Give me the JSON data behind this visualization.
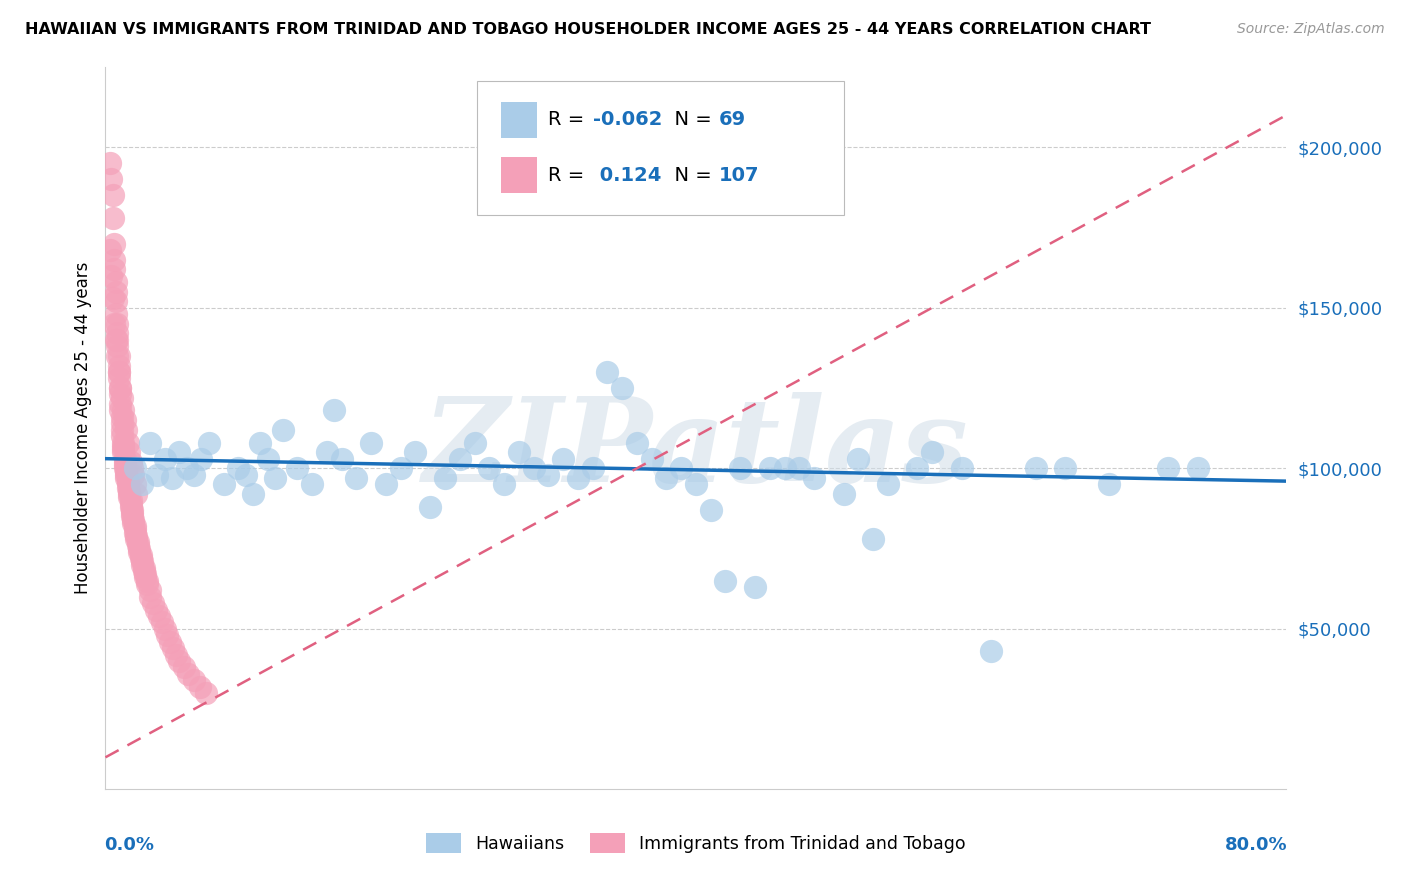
{
  "title": "HAWAIIAN VS IMMIGRANTS FROM TRINIDAD AND TOBAGO HOUSEHOLDER INCOME AGES 25 - 44 YEARS CORRELATION CHART",
  "source": "Source: ZipAtlas.com",
  "ylabel": "Householder Income Ages 25 - 44 years",
  "y_tick_labels": [
    "$50,000",
    "$100,000",
    "$150,000",
    "$200,000"
  ],
  "y_tick_values": [
    50000,
    100000,
    150000,
    200000
  ],
  "xlim": [
    0.0,
    0.8
  ],
  "ylim": [
    0,
    225000
  ],
  "r_hawaiian": -0.062,
  "n_hawaiian": 69,
  "r_trinidad": 0.124,
  "n_trinidad": 107,
  "color_hawaiian": "#aacce8",
  "color_trinidad": "#f4a0b8",
  "color_hawaiian_line": "#1a6fba",
  "color_trinidad_line": "#e06080",
  "watermark": "ZIPatlas",
  "hawaiian_x": [
    0.02,
    0.025,
    0.03,
    0.035,
    0.04,
    0.045,
    0.05,
    0.055,
    0.06,
    0.065,
    0.07,
    0.08,
    0.09,
    0.095,
    0.1,
    0.105,
    0.11,
    0.115,
    0.12,
    0.13,
    0.14,
    0.15,
    0.155,
    0.16,
    0.17,
    0.18,
    0.19,
    0.2,
    0.21,
    0.22,
    0.23,
    0.24,
    0.25,
    0.26,
    0.27,
    0.28,
    0.29,
    0.3,
    0.31,
    0.32,
    0.33,
    0.34,
    0.35,
    0.36,
    0.37,
    0.38,
    0.39,
    0.4,
    0.41,
    0.42,
    0.43,
    0.44,
    0.45,
    0.46,
    0.47,
    0.48,
    0.5,
    0.51,
    0.52,
    0.53,
    0.55,
    0.56,
    0.58,
    0.6,
    0.63,
    0.65,
    0.68,
    0.72,
    0.74
  ],
  "hawaiian_y": [
    100000,
    95000,
    108000,
    98000,
    103000,
    97000,
    105000,
    100000,
    98000,
    103000,
    108000,
    95000,
    100000,
    98000,
    92000,
    108000,
    103000,
    97000,
    112000,
    100000,
    95000,
    105000,
    118000,
    103000,
    97000,
    108000,
    95000,
    100000,
    105000,
    88000,
    97000,
    103000,
    108000,
    100000,
    95000,
    105000,
    100000,
    98000,
    103000,
    97000,
    100000,
    130000,
    125000,
    108000,
    103000,
    97000,
    100000,
    95000,
    87000,
    65000,
    100000,
    63000,
    100000,
    100000,
    100000,
    97000,
    92000,
    103000,
    78000,
    95000,
    100000,
    105000,
    100000,
    43000,
    100000,
    100000,
    95000,
    100000,
    100000
  ],
  "trinidad_x": [
    0.003,
    0.004,
    0.005,
    0.005,
    0.006,
    0.006,
    0.006,
    0.007,
    0.007,
    0.007,
    0.007,
    0.008,
    0.008,
    0.008,
    0.008,
    0.009,
    0.009,
    0.009,
    0.009,
    0.01,
    0.01,
    0.01,
    0.01,
    0.011,
    0.011,
    0.011,
    0.011,
    0.012,
    0.012,
    0.012,
    0.012,
    0.013,
    0.013,
    0.013,
    0.013,
    0.014,
    0.014,
    0.014,
    0.015,
    0.015,
    0.015,
    0.016,
    0.016,
    0.016,
    0.017,
    0.017,
    0.017,
    0.018,
    0.018,
    0.018,
    0.019,
    0.019,
    0.02,
    0.02,
    0.02,
    0.021,
    0.021,
    0.022,
    0.022,
    0.023,
    0.023,
    0.024,
    0.024,
    0.025,
    0.025,
    0.026,
    0.026,
    0.027,
    0.027,
    0.028,
    0.028,
    0.03,
    0.03,
    0.032,
    0.034,
    0.036,
    0.038,
    0.04,
    0.042,
    0.044,
    0.046,
    0.048,
    0.05,
    0.053,
    0.056,
    0.06,
    0.064,
    0.068,
    0.003,
    0.004,
    0.005,
    0.006,
    0.007,
    0.008,
    0.009,
    0.01,
    0.011,
    0.012,
    0.013,
    0.014,
    0.015,
    0.016,
    0.017,
    0.018,
    0.019,
    0.02,
    0.021
  ],
  "trinidad_y": [
    195000,
    190000,
    185000,
    178000,
    170000,
    165000,
    162000,
    158000,
    155000,
    152000,
    148000,
    145000,
    142000,
    140000,
    138000,
    135000,
    132000,
    130000,
    128000,
    125000,
    123000,
    120000,
    118000,
    116000,
    114000,
    112000,
    110000,
    108000,
    107000,
    106000,
    105000,
    103000,
    102000,
    101000,
    100000,
    99000,
    98000,
    97000,
    96000,
    95000,
    94000,
    93000,
    92000,
    91000,
    90000,
    89000,
    88000,
    87000,
    86000,
    85000,
    84000,
    83000,
    82000,
    81000,
    80000,
    79000,
    78000,
    77000,
    76000,
    75000,
    74000,
    73000,
    72000,
    71000,
    70000,
    69000,
    68000,
    67000,
    66000,
    65000,
    64000,
    62000,
    60000,
    58000,
    56000,
    54000,
    52000,
    50000,
    48000,
    46000,
    44000,
    42000,
    40000,
    38000,
    36000,
    34000,
    32000,
    30000,
    168000,
    160000,
    153000,
    145000,
    140000,
    135000,
    130000,
    125000,
    122000,
    118000,
    115000,
    112000,
    108000,
    105000,
    102000,
    100000,
    98000,
    95000,
    92000
  ],
  "h_trend_x0": 0.0,
  "h_trend_y0": 103000,
  "h_trend_x1": 0.8,
  "h_trend_y1": 96000,
  "t_trend_x0": 0.0,
  "t_trend_y0": 10000,
  "t_trend_x1": 0.8,
  "t_trend_y1": 210000
}
